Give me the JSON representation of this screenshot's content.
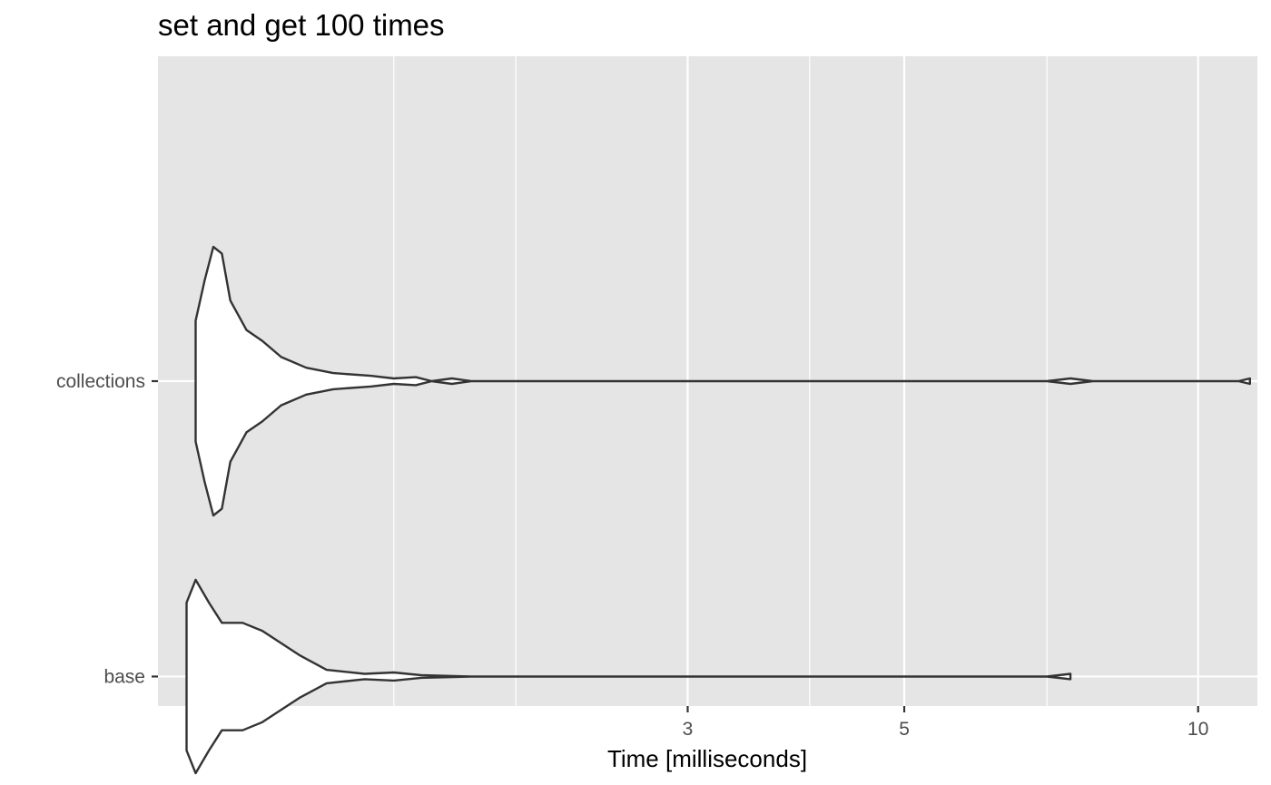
{
  "chart_data": {
    "type": "violin",
    "title": "set and get 100 times",
    "xlabel": "Time [milliseconds]",
    "ylabel": "",
    "x_scale": "log10",
    "xlim": [
      0.86,
      11.5
    ],
    "x_ticks": [
      3,
      5,
      10
    ],
    "x_tick_labels": [
      "3",
      "5",
      "10"
    ],
    "x_minor_gridlines": [
      1.5,
      2,
      4,
      7
    ],
    "categories": [
      "collections",
      "base"
    ],
    "series": [
      {
        "category": "collections",
        "min": 0.94,
        "max": 11.3,
        "density": [
          [
            0.94,
            0.45
          ],
          [
            0.96,
            0.75
          ],
          [
            0.98,
            1.0
          ],
          [
            1.0,
            0.95
          ],
          [
            1.02,
            0.6
          ],
          [
            1.06,
            0.38
          ],
          [
            1.1,
            0.3
          ],
          [
            1.15,
            0.18
          ],
          [
            1.22,
            0.1
          ],
          [
            1.3,
            0.06
          ],
          [
            1.42,
            0.04
          ],
          [
            1.5,
            0.02
          ],
          [
            1.58,
            0.03
          ],
          [
            1.64,
            0.0
          ],
          [
            1.72,
            0.02
          ],
          [
            1.8,
            0.0
          ],
          [
            2.0,
            0.0
          ],
          [
            7.0,
            0.0
          ],
          [
            7.4,
            0.02
          ],
          [
            7.8,
            0.0
          ],
          [
            11.0,
            0.0
          ],
          [
            11.3,
            0.02
          ]
        ]
      },
      {
        "category": "base",
        "min": 0.92,
        "max": 7.4,
        "density": [
          [
            0.92,
            0.55
          ],
          [
            0.94,
            0.72
          ],
          [
            0.97,
            0.55
          ],
          [
            1.0,
            0.4
          ],
          [
            1.05,
            0.4
          ],
          [
            1.1,
            0.34
          ],
          [
            1.2,
            0.16
          ],
          [
            1.28,
            0.05
          ],
          [
            1.4,
            0.02
          ],
          [
            1.5,
            0.03
          ],
          [
            1.6,
            0.01
          ],
          [
            1.8,
            0.0
          ],
          [
            7.0,
            0.0
          ],
          [
            7.4,
            0.02
          ]
        ]
      }
    ],
    "colors": {
      "panel_background": "#e5e5e5",
      "grid": "#ffffff",
      "violin_fill": "#ffffff",
      "violin_outline": "#333333",
      "tick_text": "#4d4d4d"
    },
    "legend": "none"
  }
}
